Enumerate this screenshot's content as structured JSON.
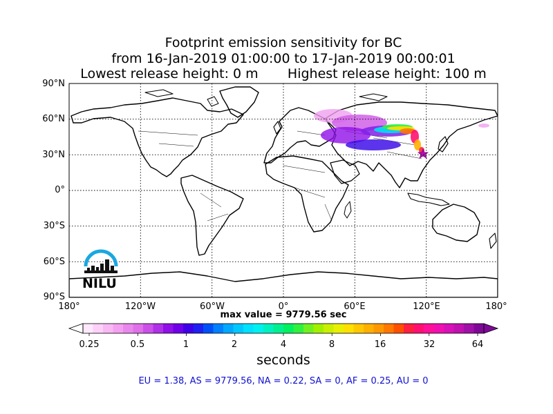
{
  "title": {
    "line1": "Footprint emission sensitivity for BC",
    "line2": "from 16-Jan-2019 01:00:00 to 17-Jan-2019 00:00:01",
    "line3": "Lowest release height: 0 m       Highest release height: 100 m"
  },
  "map": {
    "lat_ticks": [
      "90°N",
      "60°N",
      "30°N",
      "0°",
      "30°S",
      "60°S",
      "90°S"
    ],
    "lon_ticks": [
      "180°",
      "120°W",
      "60°W",
      "0°",
      "60°E",
      "120°E",
      "180°"
    ],
    "max_value_label": "max value = 9779.56 sec",
    "grid": true,
    "release_point_icon": "star-marker-icon"
  },
  "colorbar": {
    "tick_labels": [
      "0.25",
      "0.5",
      "1",
      "2",
      "4",
      "8",
      "16",
      "32",
      "64"
    ],
    "unit_label": "seconds",
    "colors": [
      "#ffe8fc",
      "#fcd0f8",
      "#f8b8f4",
      "#f4a0f0",
      "#e888ec",
      "#e070e8",
      "#cc50e8",
      "#b030e8",
      "#9010e8",
      "#7000e8",
      "#4000e8",
      "#2020f0",
      "#0050f8",
      "#0080ff",
      "#00a8ff",
      "#00c8ff",
      "#00e0ff",
      "#00f0f0",
      "#00f0c0",
      "#00f090",
      "#00f060",
      "#30f040",
      "#70f020",
      "#a0f000",
      "#c8f000",
      "#e8f000",
      "#ffe000",
      "#ffc800",
      "#ffb000",
      "#ff9800",
      "#ff7800",
      "#ff5000",
      "#ff2040",
      "#ff1070",
      "#ff1098",
      "#f010b0",
      "#d810b8",
      "#c010b0",
      "#a010a8",
      "#800898"
    ]
  },
  "regions_summary": "EU = 1.38,  AS = 9779.56,  NA = 0.22,  SA = 0,  AF = 0.25,  AU = 0",
  "logo": {
    "text": "NILU",
    "icon": "nilu-logo-icon"
  }
}
